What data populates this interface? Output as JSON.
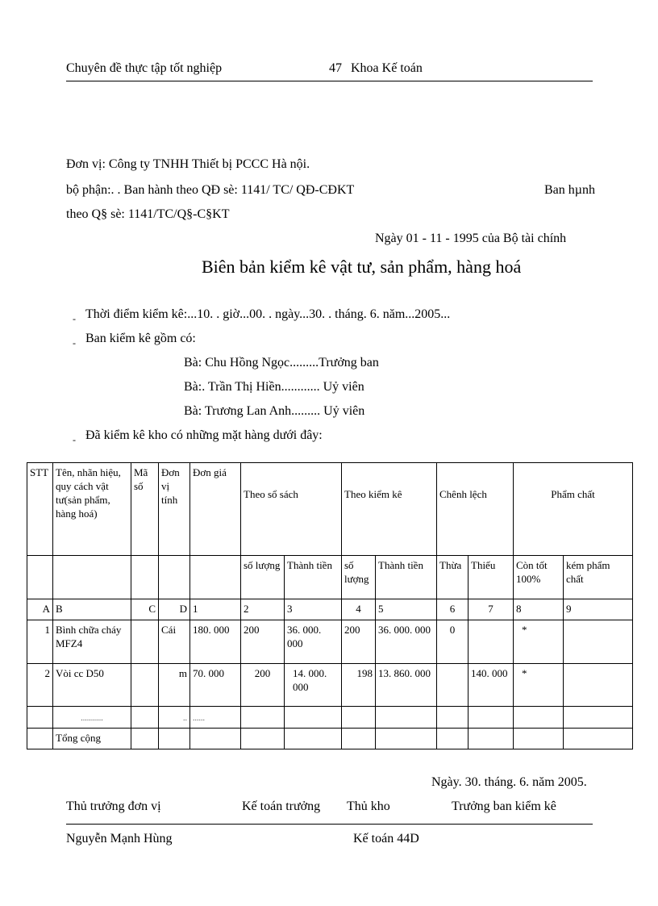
{
  "header": {
    "left": "Chuyên đề thực tập tốt nghiệp",
    "page": "47",
    "right": "Khoa Kế toán"
  },
  "unit": {
    "line1": "Đơn vị: Công ty TNHH Thiết bị PCCC Hà nội.",
    "line2": "bộ phận:. . Ban hành theo QĐ sè: 1141/ TC/ QĐ-CĐKT",
    "line2_right": "Ban hµnh",
    "line3": "theo Q§ sè: 1141/TC/Q§-C§KT",
    "line4": "Ngày 01 - 11 - 1995 của Bộ tài chính"
  },
  "title": "Biên bản kiểm kê vật tư, sản phẩm, hàng hoá",
  "bullets": {
    "time": "Thời điểm kiểm kê:...10. . giờ...00. . ngày...30. . tháng. 6. năm...2005...",
    "committee": "Ban kiểm kê gồm có:",
    "members": [
      "Bà: Chu Hồng Ngọc.........Trưởng ban",
      "Bà:. Trần Thị Hiền............ Uỷ viên",
      "Bà: Trương Lan Anh......... Uỷ viên"
    ],
    "checked": "Đã kiểm kê kho có những mặt hàng dưới đây:"
  },
  "table": {
    "h1": {
      "stt": "STT",
      "name": "Tên, nhãn hiệu, quy cách vật tư(sản phẩm, hàng hoá)",
      "code": "Mã số",
      "unit": "Đơn vị tính",
      "price": "Đơn giá",
      "book": "Theo sổ sách",
      "count": "Theo kiểm kê",
      "diff": "Chênh lệch",
      "quality": "Phẩm chất"
    },
    "h2": {
      "book_qty": "số lượng",
      "book_amt": "Thành tiền",
      "count_qty": "số lượng",
      "count_amt": "Thành tiền",
      "surplus": "Thừa",
      "short": "Thiếu",
      "good": "Còn tốt 100%",
      "poor": "kém phẩm chất"
    },
    "codes": [
      "A",
      "B",
      "C",
      "D",
      "1",
      "2",
      "3",
      "4",
      "5",
      "6",
      "7",
      "8",
      "9"
    ],
    "rows": [
      [
        "1",
        "Bình chữa cháy MFZ4",
        "",
        "Cái",
        "180. 000",
        "200",
        "36. 000. 000",
        "200",
        "36. 000. 000",
        "0",
        "",
        "*",
        ""
      ],
      [
        "2",
        "Vòi cc D50",
        "",
        "m",
        "70. 000",
        "200",
        "14. 000. 000",
        "198",
        "13. 860. 000",
        "",
        "140. 000",
        "*",
        ""
      ],
      [
        "",
        "...........",
        "",
        "..",
        "......",
        "",
        "",
        "",
        "",
        "",
        "",
        "",
        ""
      ]
    ],
    "total_label": "Tổng cộng"
  },
  "footer": {
    "date": "Ngày. 30. tháng. 6. năm 2005.",
    "sig_director": "Thủ trưởng đơn vị",
    "sig_accountant": "Kế toán trưởng",
    "sig_storekeeper": "Thủ kho",
    "sig_head": "Trưởng ban kiểm kê",
    "name_director": "Nguyễn Mạnh Hùng",
    "class": "Kế toán 44D"
  }
}
